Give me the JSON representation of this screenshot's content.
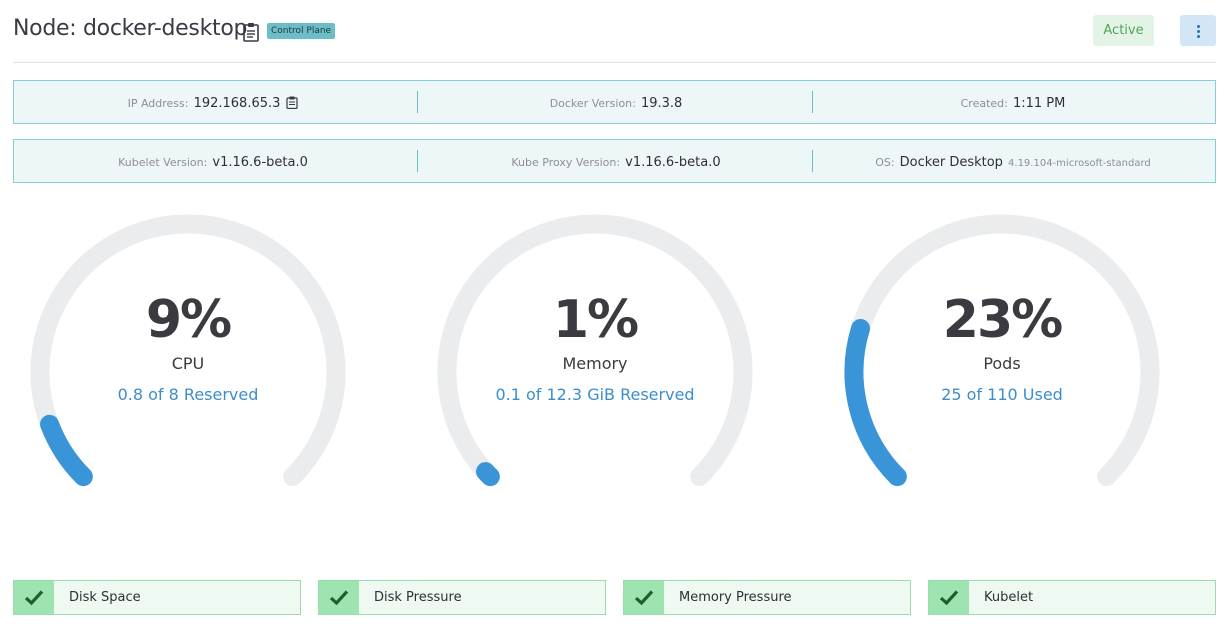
{
  "header": {
    "title": "Node: docker-desktop",
    "badge": "Control Plane",
    "status": "Active"
  },
  "info_row1": [
    {
      "label": "IP Address:",
      "value": "192.168.65.3"
    },
    {
      "label": "Docker Version:",
      "value": "19.3.8"
    },
    {
      "label": "Created:",
      "value": "1:11 PM"
    }
  ],
  "info_row2": [
    {
      "label": "Kubelet Version:",
      "value": "v1.16.6-beta.0"
    },
    {
      "label": "Kube Proxy Version:",
      "value": "v1.16.6-beta.0"
    },
    {
      "label": "OS:",
      "value": "Docker Desktop",
      "extra": "4.19.104-microsoft-standard"
    }
  ],
  "gauges": [
    {
      "percent": "9%",
      "fraction": 0.09,
      "label": "CPU",
      "detail": "0.8 of 8 Reserved"
    },
    {
      "percent": "1%",
      "fraction": 0.01,
      "label": "Memory",
      "detail": "0.1 of 12.3 GiB Reserved"
    },
    {
      "percent": "23%",
      "fraction": 0.23,
      "label": "Pods",
      "detail": "25 of 110 Used"
    }
  ],
  "conditions": [
    {
      "label": "Disk Space"
    },
    {
      "label": "Disk Pressure"
    },
    {
      "label": "Memory Pressure"
    },
    {
      "label": "Kubelet"
    }
  ],
  "colors": {
    "gauge_track": "#eaecee",
    "gauge_fill": "#3a94d8",
    "info_border": "#87cfd6",
    "condition_ok": "#9ee4b1",
    "check": "#1f5e32"
  }
}
